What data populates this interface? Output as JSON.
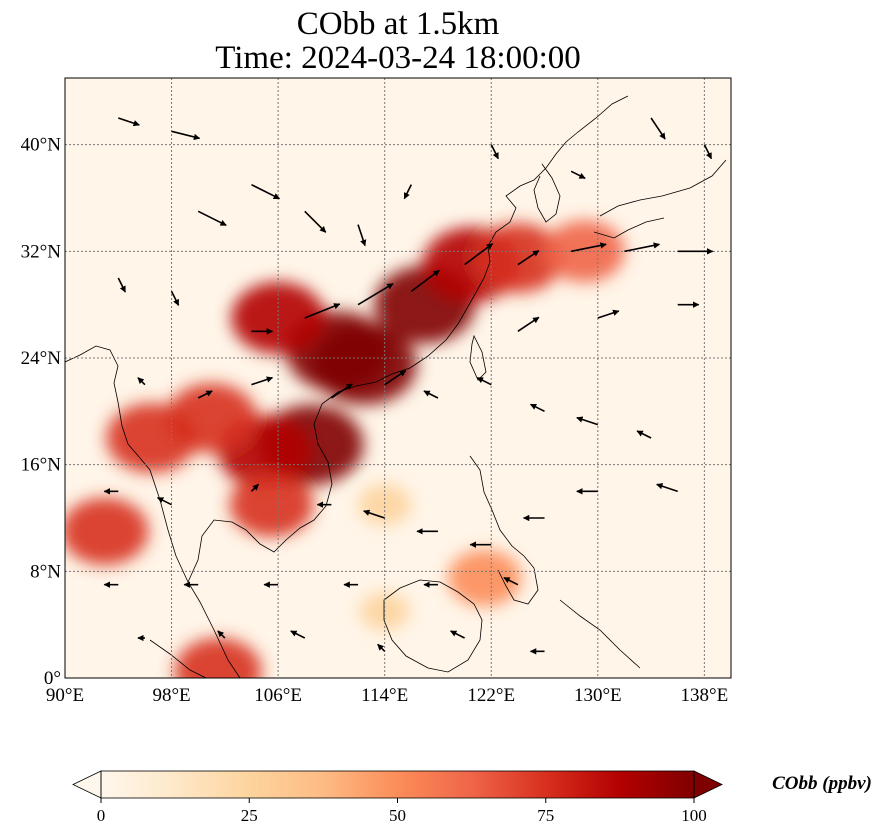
{
  "figure": {
    "title_line1": "CObb at 1.5km",
    "title_line2": "Time: 2024-03-24 18:00:00"
  },
  "map": {
    "lon_range": [
      90,
      140
    ],
    "lat_range": [
      0,
      45
    ],
    "gridlines": true,
    "x_ticks": [
      {
        "value": 90,
        "label": "90°E"
      },
      {
        "value": 98,
        "label": "98°E"
      },
      {
        "value": 106,
        "label": "106°E"
      },
      {
        "value": 114,
        "label": "114°E"
      },
      {
        "value": 122,
        "label": "122°E"
      },
      {
        "value": 130,
        "label": "130°E"
      },
      {
        "value": 138,
        "label": "138°E"
      }
    ],
    "y_ticks": [
      {
        "value": 0,
        "label": "0°"
      },
      {
        "value": 8,
        "label": "8°N"
      },
      {
        "value": 16,
        "label": "16°N"
      },
      {
        "value": 24,
        "label": "24°N"
      },
      {
        "value": 32,
        "label": "32°N"
      },
      {
        "value": 40,
        "label": "40°N"
      }
    ],
    "field_variable": "CObb",
    "colormap": "OrRd",
    "plumes": [
      {
        "region": "central-south-china-core",
        "lon": 110.5,
        "lat": 24.5,
        "value": 100
      },
      {
        "region": "southern-china",
        "lon": 112.5,
        "lat": 23.5,
        "value": 100
      },
      {
        "region": "east-china-belt",
        "lon": 117,
        "lat": 28,
        "value": 95
      },
      {
        "region": "yangtze-outflow",
        "lon": 120.5,
        "lat": 31,
        "value": 90
      },
      {
        "region": "east-china-sea",
        "lon": 124,
        "lat": 31.5,
        "value": 80
      },
      {
        "region": "korea-japan-outflow",
        "lon": 129,
        "lat": 32,
        "value": 65
      },
      {
        "region": "sichuan-yunnan",
        "lon": 106,
        "lat": 27,
        "value": 85
      },
      {
        "region": "gulf-of-tonkin",
        "lon": 108.5,
        "lat": 17.5,
        "value": 100
      },
      {
        "region": "laos-vietnam",
        "lon": 105,
        "lat": 17,
        "value": 85
      },
      {
        "region": "northern-thailand",
        "lon": 101,
        "lat": 19.5,
        "value": 80
      },
      {
        "region": "myanmar",
        "lon": 96.5,
        "lat": 18,
        "value": 80
      },
      {
        "region": "cambodia",
        "lon": 105.5,
        "lat": 13,
        "value": 70
      },
      {
        "region": "bay-of-bengal-band",
        "lon": 93,
        "lat": 11,
        "value": 75
      },
      {
        "region": "mindanao-spot",
        "lon": 121.5,
        "lat": 7.5,
        "value": 55
      },
      {
        "region": "south-china-sea-haze",
        "lon": 114,
        "lat": 13,
        "value": 25
      },
      {
        "region": "borneo-haze",
        "lon": 114,
        "lat": 5,
        "value": 20
      },
      {
        "region": "malay-tip",
        "lon": 101.5,
        "lat": 0.5,
        "value": 75
      }
    ],
    "wind_vectors": [
      {
        "lon": 94,
        "lat": 42,
        "u": 3,
        "v": -1
      },
      {
        "lon": 98,
        "lat": 41,
        "u": 4,
        "v": -1
      },
      {
        "lon": 100,
        "lat": 35,
        "u": 4,
        "v": -2
      },
      {
        "lon": 104,
        "lat": 37,
        "u": 4,
        "v": -2
      },
      {
        "lon": 108,
        "lat": 35,
        "u": 3,
        "v": -3
      },
      {
        "lon": 112,
        "lat": 34,
        "u": 1,
        "v": -3
      },
      {
        "lon": 116,
        "lat": 37,
        "u": -1,
        "v": -2
      },
      {
        "lon": 122,
        "lat": 40,
        "u": 1,
        "v": -2
      },
      {
        "lon": 128,
        "lat": 38,
        "u": 2,
        "v": -1
      },
      {
        "lon": 134,
        "lat": 42,
        "u": 2,
        "v": -3
      },
      {
        "lon": 138,
        "lat": 40,
        "u": 1,
        "v": -2
      },
      {
        "lon": 94,
        "lat": 30,
        "u": 1,
        "v": -2
      },
      {
        "lon": 98,
        "lat": 29,
        "u": 1,
        "v": -2
      },
      {
        "lon": 104,
        "lat": 26,
        "u": 3,
        "v": 0
      },
      {
        "lon": 108,
        "lat": 27,
        "u": 5,
        "v": 2
      },
      {
        "lon": 112,
        "lat": 28,
        "u": 5,
        "v": 3
      },
      {
        "lon": 116,
        "lat": 29,
        "u": 4,
        "v": 3
      },
      {
        "lon": 120,
        "lat": 31,
        "u": 4,
        "v": 3
      },
      {
        "lon": 124,
        "lat": 31,
        "u": 3,
        "v": 2
      },
      {
        "lon": 128,
        "lat": 32,
        "u": 5,
        "v": 1
      },
      {
        "lon": 132,
        "lat": 32,
        "u": 5,
        "v": 1
      },
      {
        "lon": 136,
        "lat": 32,
        "u": 5,
        "v": 0
      },
      {
        "lon": 124,
        "lat": 26,
        "u": 3,
        "v": 2
      },
      {
        "lon": 130,
        "lat": 27,
        "u": 3,
        "v": 1
      },
      {
        "lon": 136,
        "lat": 28,
        "u": 3,
        "v": 0
      },
      {
        "lon": 96,
        "lat": 22,
        "u": -1,
        "v": 1
      },
      {
        "lon": 100,
        "lat": 21,
        "u": 2,
        "v": 1
      },
      {
        "lon": 104,
        "lat": 22,
        "u": 3,
        "v": 1
      },
      {
        "lon": 110,
        "lat": 21,
        "u": 3,
        "v": 2
      },
      {
        "lon": 114,
        "lat": 22,
        "u": 3,
        "v": 2
      },
      {
        "lon": 118,
        "lat": 21,
        "u": -2,
        "v": 1
      },
      {
        "lon": 122,
        "lat": 22,
        "u": -2,
        "v": 1
      },
      {
        "lon": 126,
        "lat": 20,
        "u": -2,
        "v": 1
      },
      {
        "lon": 130,
        "lat": 19,
        "u": -3,
        "v": 1
      },
      {
        "lon": 134,
        "lat": 18,
        "u": -2,
        "v": 1
      },
      {
        "lon": 94,
        "lat": 14,
        "u": -2,
        "v": 0
      },
      {
        "lon": 98,
        "lat": 13,
        "u": -2,
        "v": 1
      },
      {
        "lon": 104,
        "lat": 14,
        "u": 1,
        "v": 1
      },
      {
        "lon": 110,
        "lat": 13,
        "u": -2,
        "v": 0
      },
      {
        "lon": 114,
        "lat": 12,
        "u": -3,
        "v": 1
      },
      {
        "lon": 118,
        "lat": 11,
        "u": -3,
        "v": 0
      },
      {
        "lon": 122,
        "lat": 10,
        "u": -3,
        "v": 0
      },
      {
        "lon": 126,
        "lat": 12,
        "u": -3,
        "v": 0
      },
      {
        "lon": 130,
        "lat": 14,
        "u": -3,
        "v": 0
      },
      {
        "lon": 136,
        "lat": 14,
        "u": -3,
        "v": 1
      },
      {
        "lon": 94,
        "lat": 7,
        "u": -2,
        "v": 0
      },
      {
        "lon": 100,
        "lat": 7,
        "u": -2,
        "v": 0
      },
      {
        "lon": 106,
        "lat": 7,
        "u": -2,
        "v": 0
      },
      {
        "lon": 112,
        "lat": 7,
        "u": -2,
        "v": 0
      },
      {
        "lon": 118,
        "lat": 7,
        "u": -2,
        "v": 0
      },
      {
        "lon": 124,
        "lat": 7,
        "u": -2,
        "v": 1
      },
      {
        "lon": 96,
        "lat": 3,
        "u": -1,
        "v": 0
      },
      {
        "lon": 102,
        "lat": 3,
        "u": -1,
        "v": 1
      },
      {
        "lon": 108,
        "lat": 3,
        "u": -2,
        "v": 1
      },
      {
        "lon": 114,
        "lat": 2,
        "u": -1,
        "v": 1
      },
      {
        "lon": 120,
        "lat": 3,
        "u": -2,
        "v": 1
      },
      {
        "lon": 126,
        "lat": 2,
        "u": -2,
        "v": 0
      }
    ]
  },
  "colorbar": {
    "min": 0,
    "max": 100,
    "extend": "both",
    "label": "CObb (ppbv)",
    "ticks": [
      {
        "value": 0,
        "label": "0"
      },
      {
        "value": 25,
        "label": "25"
      },
      {
        "value": 50,
        "label": "50"
      },
      {
        "value": 75,
        "label": "75"
      },
      {
        "value": 100,
        "label": "100"
      }
    ],
    "colors": [
      "#fff7ec",
      "#fee8c8",
      "#fdd49e",
      "#fdbb84",
      "#fc8d59",
      "#ef6548",
      "#d7301f",
      "#b30000",
      "#7f0000"
    ]
  }
}
